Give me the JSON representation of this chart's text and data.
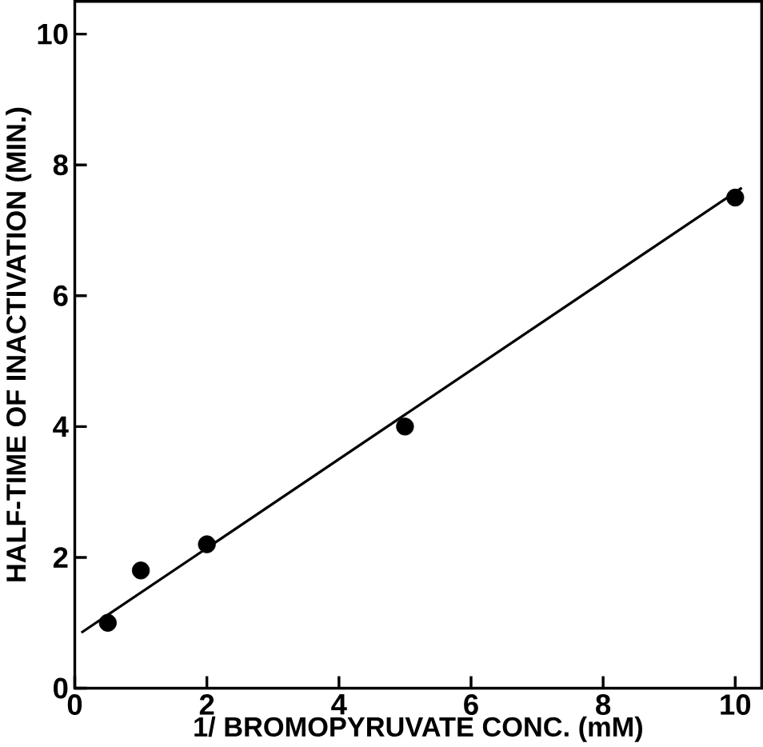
{
  "chart_data": {
    "type": "scatter",
    "xlabel": "1/ BROMOPYRUVATE CONC. (mM)",
    "ylabel": "HALF-TIME OF INACTIVATION (MIN.)",
    "xlim": [
      0,
      10.4
    ],
    "ylim": [
      0,
      10.5
    ],
    "xticks": [
      0,
      2,
      4,
      6,
      8,
      10
    ],
    "yticks": [
      0,
      2,
      4,
      6,
      8,
      10
    ],
    "grid": false,
    "series": [
      {
        "color": "#000000",
        "marker": "circle",
        "x": [
          0.5,
          1,
          2,
          5,
          10
        ],
        "values": [
          1.0,
          1.8,
          2.2,
          4.0,
          7.5
        ]
      },
      {
        "type": "line",
        "color": "#000000",
        "marker": "none",
        "line_style": "solid",
        "x": [
          0.1,
          10.1
        ],
        "values": [
          0.85,
          7.65
        ]
      }
    ]
  }
}
